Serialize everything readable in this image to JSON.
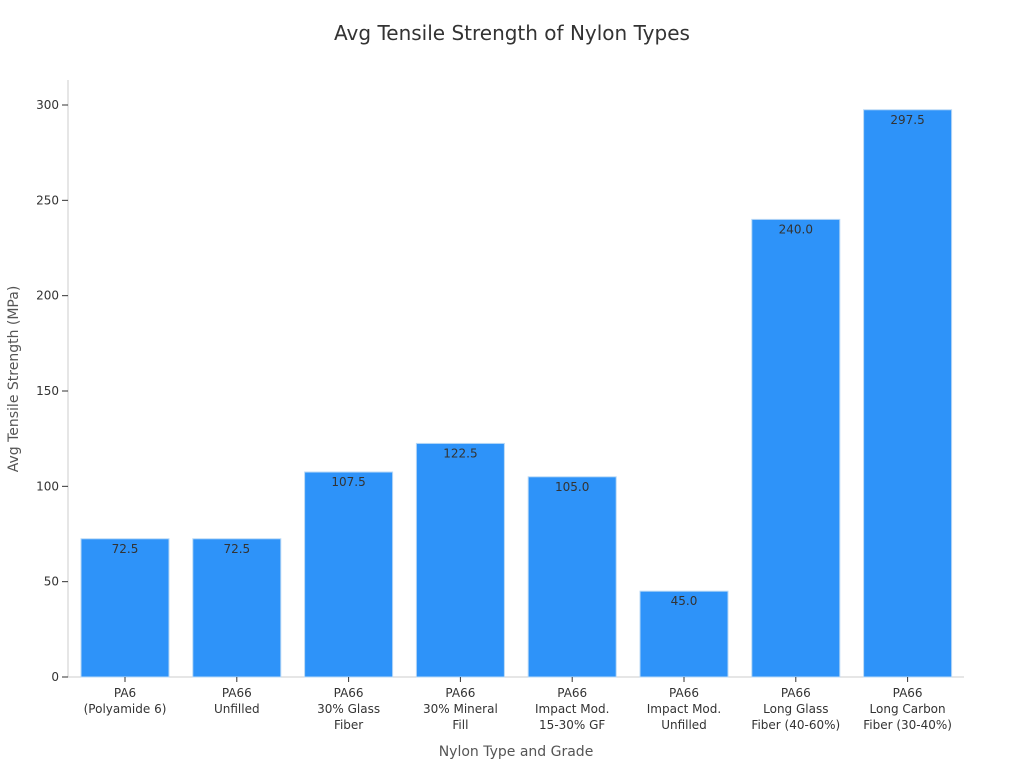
{
  "chart_data": {
    "type": "bar",
    "title": "Avg Tensile Strength of Nylon Types",
    "xlabel": "Nylon Type and Grade",
    "ylabel": "Avg Tensile Strength (MPa)",
    "categories": [
      [
        "PA6",
        "(Polyamide 6)"
      ],
      [
        "PA66",
        "Unfilled"
      ],
      [
        "PA66",
        "30% Glass",
        "Fiber"
      ],
      [
        "PA66",
        "30% Mineral",
        "Fill"
      ],
      [
        "PA66",
        "Impact Mod.",
        "15-30% GF"
      ],
      [
        "PA66",
        "Impact Mod.",
        "Unfilled"
      ],
      [
        "PA66",
        "Long Glass",
        "Fiber (40-60%)"
      ],
      [
        "PA66",
        "Long Carbon",
        "Fiber (30-40%)"
      ]
    ],
    "values": [
      72.5,
      72.5,
      107.5,
      122.5,
      105.0,
      45.0,
      240.0,
      297.5
    ],
    "value_labels": [
      "72.5",
      "72.5",
      "107.5",
      "122.5",
      "105.0",
      "45.0",
      "240.0",
      "297.5"
    ],
    "yticks": [
      0,
      50,
      100,
      150,
      200,
      250,
      300
    ],
    "ylim": [
      0,
      300
    ],
    "grid": false,
    "bar_color": "#2e93f9",
    "bar_edge_color": "#b8d8f6",
    "text_color": "#333333",
    "axis_label_color": "#555555",
    "axis_color": "#cccccc"
  }
}
